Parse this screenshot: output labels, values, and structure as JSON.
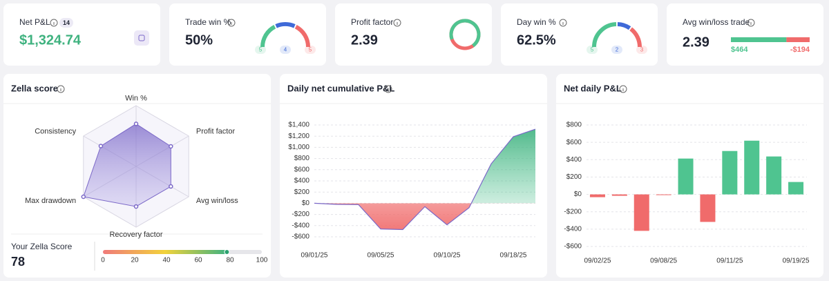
{
  "cards": {
    "net_pnl": {
      "label": "Net P&L",
      "badge": "14",
      "value": "$1,324.74"
    },
    "trade_win": {
      "label": "Trade win %",
      "value": "50%",
      "gauge": [
        {
          "value": 5,
          "color": "#4fc490"
        },
        {
          "value": 4,
          "color": "#3f6ad8"
        },
        {
          "value": 5,
          "color": "#f06b6b"
        }
      ]
    },
    "profit_factor": {
      "label": "Profit factor",
      "value": 2.39,
      "colors": [
        "#4fc490",
        "#f06b6b"
      ]
    },
    "day_win": {
      "label": "Day win %",
      "value": "62.5%",
      "gauge": [
        {
          "value": 5,
          "color": "#4fc490"
        },
        {
          "value": 2,
          "color": "#3f6ad8"
        },
        {
          "value": 3,
          "color": "#f06b6b"
        }
      ]
    },
    "avg_win_loss": {
      "label": "Avg win/loss trade",
      "value": 2.39,
      "win": 464,
      "loss": -194,
      "value_labels": [
        "$464",
        "-$194"
      ],
      "colors": [
        "#4fc490",
        "#f06b6b"
      ]
    }
  },
  "zella": {
    "title": "Zella score",
    "type": "radar",
    "rlim": [
      0,
      100
    ],
    "color": "#7b68c8",
    "axes": [
      {
        "label": "Win %",
        "value": 70
      },
      {
        "label": "Profit factor",
        "value": 66
      },
      {
        "label": "Avg win/loss",
        "value": 66
      },
      {
        "label": "Recovery factor",
        "value": 66
      },
      {
        "label": "Max drawdown",
        "value": 100
      },
      {
        "label": "Consistency",
        "value": 67
      }
    ],
    "score_label": "Your Zella Score",
    "score": 78,
    "scale_lim": [
      0,
      100
    ],
    "scale_ticks": [
      0,
      20,
      40,
      60,
      80,
      100
    ]
  },
  "cumulative": {
    "title": "Daily net cumulative P&L",
    "type": "area",
    "line_color": "#7b68c8",
    "grid": true,
    "categories": [
      "09/01/25",
      null,
      null,
      "09/05/25",
      null,
      null,
      "09/10/25",
      null,
      null,
      "09/18/25",
      null
    ],
    "values": [
      0,
      -20,
      -25,
      -460,
      -470,
      -60,
      -385,
      -80,
      705,
      1190,
      1325
    ],
    "ylim": [
      -600,
      1400
    ],
    "yticks": [
      {
        "value": -600,
        "label": "-$600"
      },
      {
        "value": -400,
        "label": "-$400"
      },
      {
        "value": -200,
        "label": "-$200"
      },
      {
        "value": 0,
        "label": "$0"
      },
      {
        "value": 200,
        "label": "$200"
      },
      {
        "value": 400,
        "label": "$400"
      },
      {
        "value": 600,
        "label": "$600"
      },
      {
        "value": 800,
        "label": "$800"
      },
      {
        "value": 1000,
        "label": "$1,000"
      },
      {
        "value": 1200,
        "label": "$1,200"
      },
      {
        "value": 1400,
        "label": "$1,400"
      }
    ]
  },
  "daily": {
    "title": "Net daily P&L",
    "type": "bar",
    "grid": true,
    "colors": [
      "#4fc490",
      "#f06b6b"
    ],
    "categories": [
      "09/02/25",
      null,
      null,
      "09/08/25",
      null,
      null,
      "09/11/25",
      null,
      null,
      "09/19/25"
    ],
    "values": [
      -32,
      -16,
      -420,
      -5,
      413,
      -317,
      500,
      619,
      437,
      143
    ],
    "ylim": [
      -600,
      800
    ],
    "yticks": [
      {
        "value": -600,
        "label": "-$600"
      },
      {
        "value": -400,
        "label": "-$400"
      },
      {
        "value": -200,
        "label": "-$200"
      },
      {
        "value": 0,
        "label": "$0"
      },
      {
        "value": 200,
        "label": "$200"
      },
      {
        "value": 400,
        "label": "$400"
      },
      {
        "value": 600,
        "label": "$600"
      },
      {
        "value": 800,
        "label": "$800"
      }
    ]
  }
}
